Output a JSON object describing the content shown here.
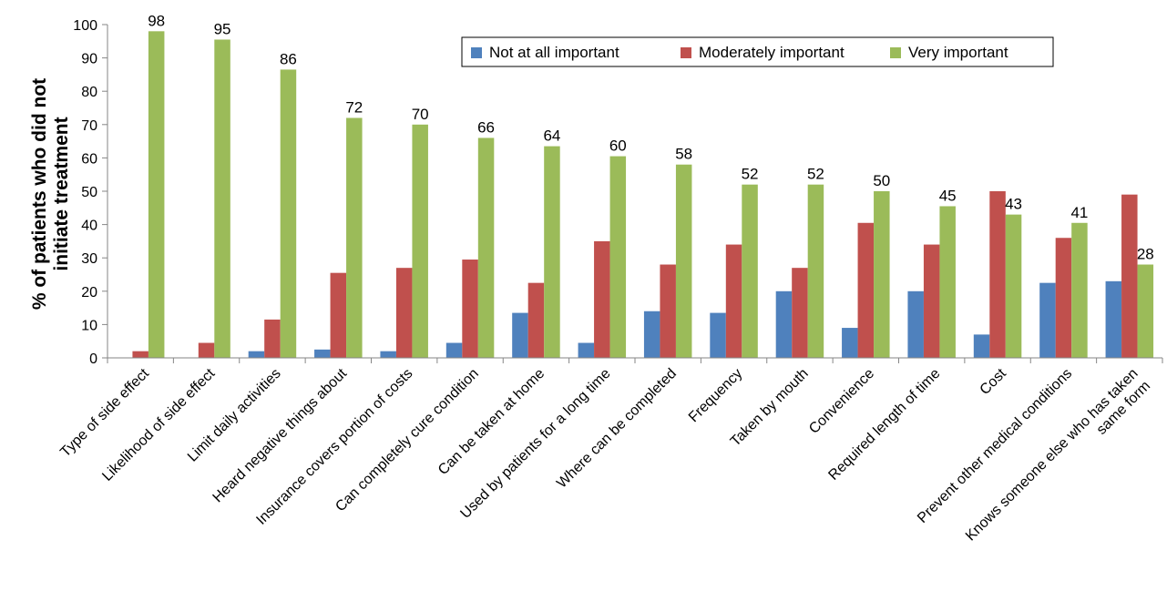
{
  "chart_data": {
    "type": "bar",
    "ylabel_lines": [
      "% of patients who did not",
      "initiate treatment"
    ],
    "ylim": [
      0,
      100
    ],
    "yticks": [
      "0",
      "10",
      "20",
      "30",
      "40",
      "50",
      "60",
      "70",
      "80",
      "90",
      "100"
    ],
    "ytick_values": [
      0,
      10,
      20,
      30,
      40,
      50,
      60,
      70,
      80,
      90,
      100
    ],
    "grid": false,
    "legend_position": "top-right",
    "categories": [
      [
        "Type of side effect"
      ],
      [
        "Likelihood of side effect"
      ],
      [
        "Limit daily activities"
      ],
      [
        "Heard negative things about"
      ],
      [
        "Insurance covers portion of costs"
      ],
      [
        "Can completely cure condition"
      ],
      [
        "Can be taken at home"
      ],
      [
        "Used by patients for a long time"
      ],
      [
        "Where can be completed"
      ],
      [
        "Frequency"
      ],
      [
        "Taken by mouth"
      ],
      [
        "Convenience"
      ],
      [
        "Required length of time"
      ],
      [
        "Cost"
      ],
      [
        "Prevent other medical conditions"
      ],
      [
        "Knows someone else who has taken",
        "same form"
      ]
    ],
    "series": [
      {
        "name": "Not at all important",
        "color": "#4F81BD",
        "values": [
          0,
          0,
          2,
          2.5,
          2,
          4.5,
          13.5,
          4.5,
          14,
          13.5,
          20,
          9,
          20,
          7,
          22.5,
          23
        ]
      },
      {
        "name": "Moderately important",
        "color": "#C0504D",
        "values": [
          2,
          4.5,
          11.5,
          25.5,
          27,
          29.5,
          22.5,
          35,
          28,
          34,
          27,
          40.5,
          34,
          50,
          36,
          49
        ]
      },
      {
        "name": "Very important",
        "color": "#9BBB59",
        "values": [
          98,
          95.5,
          86.5,
          72,
          70,
          66,
          63.5,
          60.5,
          58,
          52,
          52,
          50,
          45.5,
          43,
          40.5,
          28
        ]
      }
    ],
    "data_labels": [
      "98",
      "95",
      "86",
      "72",
      "70",
      "66",
      "64",
      "60",
      "58",
      "52",
      "52",
      "50",
      "45",
      "43",
      "41",
      "28"
    ]
  }
}
